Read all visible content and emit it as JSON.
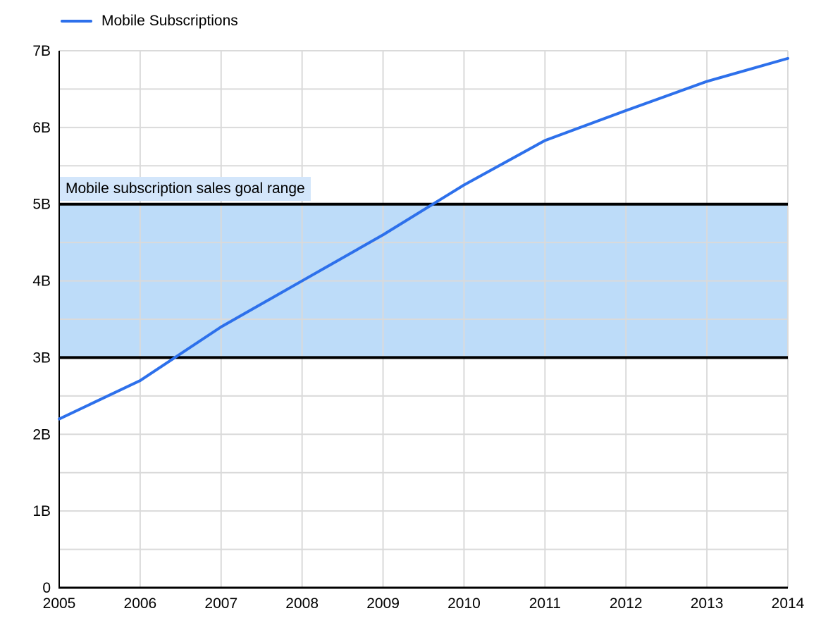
{
  "legend": {
    "label": "Mobile Subscriptions"
  },
  "colors": {
    "series_line": "#2d70eb",
    "goal_band_fill": "#bddcf9",
    "goal_band_border": "#000000",
    "goal_label_bg": "#d3e6fb",
    "gridline": "#dadada",
    "axis": "#000000",
    "text": "#000000",
    "background": "#ffffff"
  },
  "chart_data": {
    "type": "line",
    "title": "",
    "xlabel": "",
    "ylabel": "",
    "x": [
      2005,
      2006,
      2007,
      2008,
      2009,
      2010,
      2011,
      2012,
      2013,
      2014
    ],
    "x_tick_labels": [
      "2005",
      "2006",
      "2007",
      "2008",
      "2009",
      "2010",
      "2011",
      "2012",
      "2013",
      "2014"
    ],
    "series": [
      {
        "name": "Mobile Subscriptions",
        "values": [
          2.2,
          2.7,
          3.4,
          4.0,
          4.6,
          5.25,
          5.83,
          6.22,
          6.6,
          6.9
        ]
      }
    ],
    "ylim": [
      0,
      7
    ],
    "y_ticks": [
      0,
      1,
      2,
      3,
      4,
      5,
      6,
      7
    ],
    "y_tick_labels": [
      "0",
      "1B",
      "2B",
      "3B",
      "4B",
      "5B",
      "6B",
      "7B"
    ],
    "y_minor_grid_step": 0.5,
    "grid": "on",
    "legend_position": "top-left",
    "annotations": [
      {
        "type": "band",
        "y_from": 3,
        "y_to": 5,
        "label": "Mobile subscription sales goal range"
      }
    ]
  }
}
